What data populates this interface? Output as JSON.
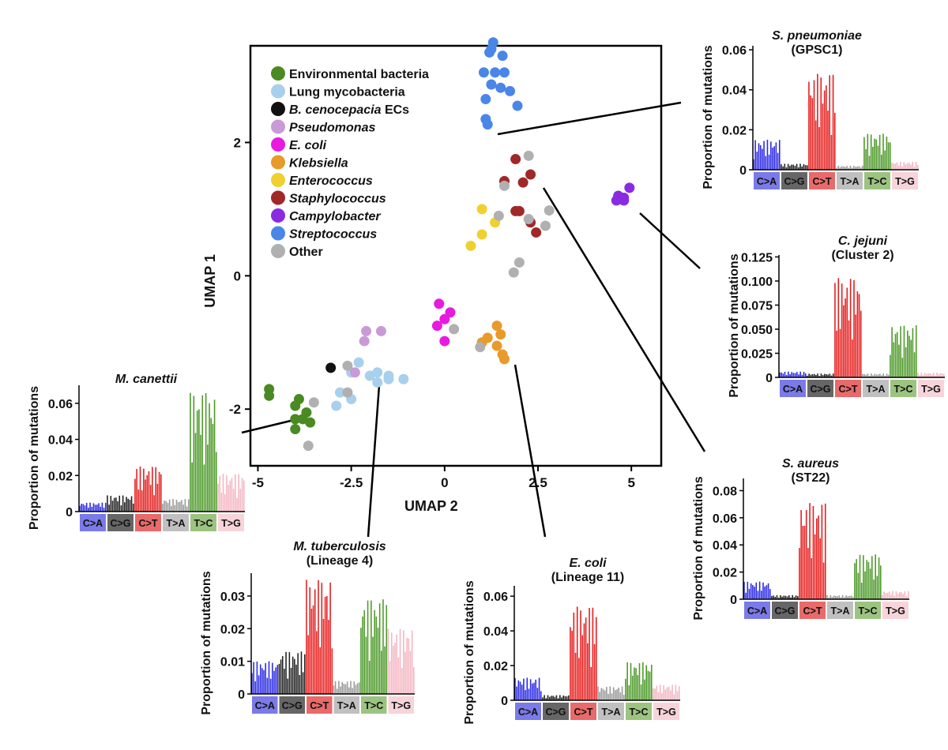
{
  "chart_data": [
    {
      "type": "scatter",
      "id": "umap",
      "xlabel": "UMAP 2",
      "ylabel": "UMAP 1",
      "xlim": [
        -5.2,
        5.8
      ],
      "ylim": [
        -2.85,
        3.45
      ],
      "xticks": [
        -5,
        -2.5,
        0,
        2.5,
        5
      ],
      "xtick_labels": [
        "-5",
        "-2.5",
        "0",
        "2.5",
        "5"
      ],
      "yticks": [
        -2,
        0,
        2
      ],
      "ytick_labels": [
        "-2",
        "0",
        "2"
      ],
      "legend_position": "top-left",
      "series": [
        {
          "name": "Environmental bacteria",
          "italic": false,
          "color": "#4a8a22",
          "points": [
            [
              -4.7,
              -1.7
            ],
            [
              -4.7,
              -1.8
            ],
            [
              -3.9,
              -1.85
            ],
            [
              -4.0,
              -1.95
            ],
            [
              -3.7,
              -2.05
            ],
            [
              -4.0,
              -2.15
            ],
            [
              -3.8,
              -2.15
            ],
            [
              -3.6,
              -2.2
            ],
            [
              -4.0,
              -2.3
            ]
          ]
        },
        {
          "name": "Lung mycobacteria",
          "italic": false,
          "color": "#a8d0ec",
          "points": [
            [
              -2.3,
              -1.3
            ],
            [
              -2.5,
              -1.45
            ],
            [
              -2.0,
              -1.5
            ],
            [
              -1.8,
              -1.45
            ],
            [
              -1.5,
              -1.5
            ],
            [
              -1.5,
              -1.55
            ],
            [
              -1.1,
              -1.55
            ],
            [
              -1.8,
              -1.6
            ],
            [
              -2.8,
              -1.75
            ],
            [
              -2.5,
              -1.85
            ],
            [
              -2.9,
              -1.95
            ]
          ]
        },
        {
          "name": "B. cenocepacia ECs",
          "italic": true,
          "prefix": "",
          "italicPart": "B. cenocepacia",
          "suffix": " ECs",
          "color": "#111111",
          "points": [
            [
              -3.05,
              -1.38
            ]
          ]
        },
        {
          "name": "Pseudomonas",
          "italic": true,
          "color": "#c89bd6",
          "points": [
            [
              -2.1,
              -0.83
            ],
            [
              -1.7,
              -0.83
            ],
            [
              -2.15,
              -0.98
            ],
            [
              -2.4,
              -1.45
            ]
          ]
        },
        {
          "name": "E. coli",
          "italic": true,
          "color": "#e81ae0",
          "points": [
            [
              -0.15,
              -0.42
            ],
            [
              0.15,
              -0.55
            ],
            [
              0.0,
              -0.65
            ],
            [
              -0.2,
              -0.75
            ],
            [
              0.0,
              -0.98
            ]
          ]
        },
        {
          "name": "Klebsiella",
          "italic": true,
          "color": "#e89a2a",
          "points": [
            [
              1.4,
              -0.75
            ],
            [
              1.5,
              -0.88
            ],
            [
              1.15,
              -0.93
            ],
            [
              1.0,
              -1.0
            ],
            [
              1.4,
              -1.05
            ],
            [
              1.55,
              -1.18
            ],
            [
              1.6,
              -1.25
            ]
          ]
        },
        {
          "name": "Enterococcus",
          "italic": true,
          "color": "#f0d030",
          "points": [
            [
              1.0,
              1.0
            ],
            [
              1.35,
              0.8
            ],
            [
              1.0,
              0.62
            ],
            [
              0.7,
              0.45
            ]
          ]
        },
        {
          "name": "Staphylococcus",
          "italic": true,
          "color": "#a02828",
          "points": [
            [
              1.9,
              1.75
            ],
            [
              2.3,
              1.52
            ],
            [
              1.6,
              1.42
            ],
            [
              2.1,
              1.4
            ],
            [
              1.9,
              0.97
            ],
            [
              2.0,
              0.97
            ],
            [
              2.3,
              0.8
            ],
            [
              2.45,
              0.65
            ]
          ]
        },
        {
          "name": "Campylobacter",
          "italic": true,
          "color": "#8a2be2",
          "points": [
            [
              4.95,
              1.32
            ],
            [
              4.65,
              1.2
            ],
            [
              4.8,
              1.17
            ],
            [
              4.6,
              1.13
            ],
            [
              4.8,
              1.13
            ]
          ]
        },
        {
          "name": "Streptococcus",
          "italic": true,
          "color": "#4a86e8",
          "points": [
            [
              1.3,
              3.5
            ],
            [
              1.25,
              3.4
            ],
            [
              1.2,
              3.35
            ],
            [
              1.55,
              3.3
            ],
            [
              1.05,
              3.05
            ],
            [
              1.35,
              3.05
            ],
            [
              1.6,
              3.05
            ],
            [
              1.25,
              2.87
            ],
            [
              1.5,
              2.82
            ],
            [
              1.75,
              2.77
            ],
            [
              1.1,
              2.65
            ],
            [
              1.95,
              2.55
            ],
            [
              1.1,
              2.35
            ],
            [
              1.15,
              2.27
            ]
          ]
        },
        {
          "name": "Other",
          "italic": false,
          "color": "#b0b0b0",
          "points": [
            [
              2.25,
              1.8
            ],
            [
              1.6,
              1.35
            ],
            [
              2.8,
              0.98
            ],
            [
              1.45,
              0.9
            ],
            [
              2.25,
              0.85
            ],
            [
              2.7,
              0.75
            ],
            [
              2.0,
              0.2
            ],
            [
              1.85,
              0.05
            ],
            [
              0.25,
              -0.8
            ],
            [
              0.95,
              -1.07
            ],
            [
              -2.6,
              -1.35
            ],
            [
              -2.6,
              -1.75
            ],
            [
              -3.5,
              -1.9
            ],
            [
              -3.65,
              -2.55
            ]
          ]
        }
      ]
    }
  ],
  "spectra": [
    {
      "id": "s-pneumoniae",
      "title_italic": "S. pneumoniae",
      "subtitle": "(GPSC1)",
      "ylabel": "Proportion of mutations",
      "ymax": 0.062,
      "yticks": [
        0,
        0.02,
        0.04,
        0.06
      ],
      "ytick_labels": [
        "0",
        "0.02",
        "0.04",
        "0.06"
      ],
      "group_peaks": [
        0.015,
        0.003,
        0.048,
        0.002,
        0.018,
        0.004
      ]
    },
    {
      "id": "c-jejuni",
      "title_italic": "C. jejuni",
      "subtitle": "(Cluster 2)",
      "ylabel": "Proportion of mutations",
      "ymax": 0.127,
      "yticks": [
        0,
        0.025,
        0.05,
        0.075,
        0.1,
        0.125
      ],
      "ytick_labels": [
        "0",
        "0.025",
        "0.050",
        "0.075",
        "0.100",
        "0.125"
      ],
      "group_peaks": [
        0.006,
        0.004,
        0.103,
        0.004,
        0.054,
        0.005
      ]
    },
    {
      "id": "s-aureus",
      "title_italic": "S. aureus",
      "subtitle": "(ST22)",
      "ylabel": "Proportion of mutations",
      "ymax": 0.089,
      "yticks": [
        0,
        0.02,
        0.04,
        0.06,
        0.08
      ],
      "ytick_labels": [
        "0",
        "0.02",
        "0.04",
        "0.06",
        "0.08"
      ],
      "group_peaks": [
        0.013,
        0.003,
        0.071,
        0.003,
        0.033,
        0.006
      ]
    },
    {
      "id": "m-canettii",
      "title_italic": "M. canettii",
      "subtitle": "",
      "ylabel": "Proportion of mutations",
      "ymax": 0.07,
      "yticks": [
        0,
        0.02,
        0.04,
        0.06
      ],
      "ytick_labels": [
        "0",
        "0.02",
        "0.04",
        "0.06"
      ],
      "group_peaks": [
        0.005,
        0.009,
        0.025,
        0.007,
        0.066,
        0.021
      ]
    },
    {
      "id": "m-tuberculosis",
      "title_italic": "M. tuberculosis",
      "subtitle": "(Lineage 4)",
      "ylabel": "Proportion of mutations",
      "ymax": 0.037,
      "yticks": [
        0,
        0.01,
        0.02,
        0.03
      ],
      "ytick_labels": [
        "0",
        "0.01",
        "0.02",
        "0.03"
      ],
      "group_peaks": [
        0.01,
        0.013,
        0.035,
        0.004,
        0.029,
        0.02
      ]
    },
    {
      "id": "e-coli",
      "title_italic": "E. coli",
      "subtitle": "(Lineage 11)",
      "ylabel": "Proportion of mutations",
      "ymax": 0.066,
      "yticks": [
        0,
        0.02,
        0.04,
        0.06
      ],
      "ytick_labels": [
        "0",
        "0.02",
        "0.04",
        "0.06"
      ],
      "group_peaks": [
        0.013,
        0.003,
        0.054,
        0.008,
        0.022,
        0.009
      ]
    }
  ],
  "mutation_groups": [
    {
      "label": "C>A",
      "bar": "#2a2ae6",
      "box": "#7a7ae8"
    },
    {
      "label": "C>G",
      "bar": "#222222",
      "box": "#666666"
    },
    {
      "label": "C>T",
      "bar": "#e61e1e",
      "box": "#e86a6a"
    },
    {
      "label": "T>A",
      "bar": "#9a9a9a",
      "box": "#c0c0c0"
    },
    {
      "label": "T>C",
      "bar": "#4e9a2a",
      "box": "#9cc480"
    },
    {
      "label": "T>G",
      "bar": "#f4b6c2",
      "box": "#f7d4da"
    }
  ]
}
